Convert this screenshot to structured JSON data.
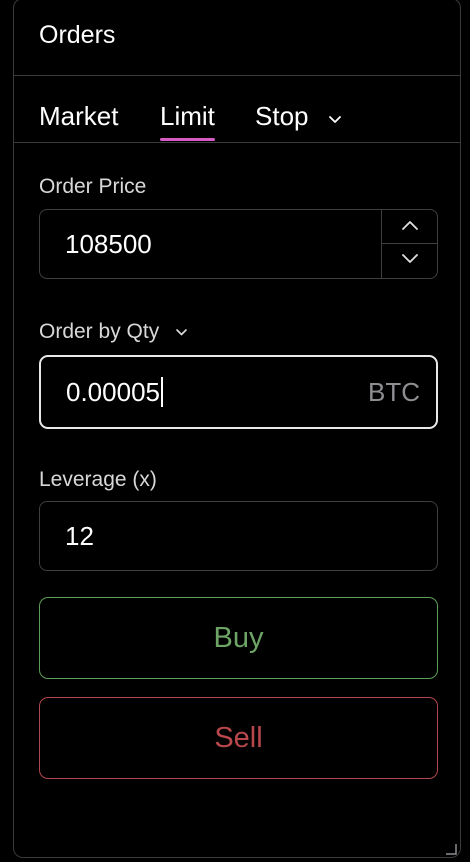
{
  "header": {
    "title": "Orders"
  },
  "tabs": [
    {
      "label": "Market"
    },
    {
      "label": "Limit",
      "active": true
    },
    {
      "label": "Stop",
      "has_dropdown": true
    }
  ],
  "order_price": {
    "label": "Order Price",
    "value": "108500"
  },
  "order_qty": {
    "label": "Order by Qty",
    "value": "0.00005",
    "unit": "BTC"
  },
  "leverage": {
    "label": "Leverage (x)",
    "value": "12"
  },
  "actions": {
    "buy_label": "Buy",
    "sell_label": "Sell"
  },
  "colors": {
    "accent": "#d65bc4",
    "buy": "#6da466",
    "sell": "#b8474b",
    "border": "#3f3f42"
  }
}
